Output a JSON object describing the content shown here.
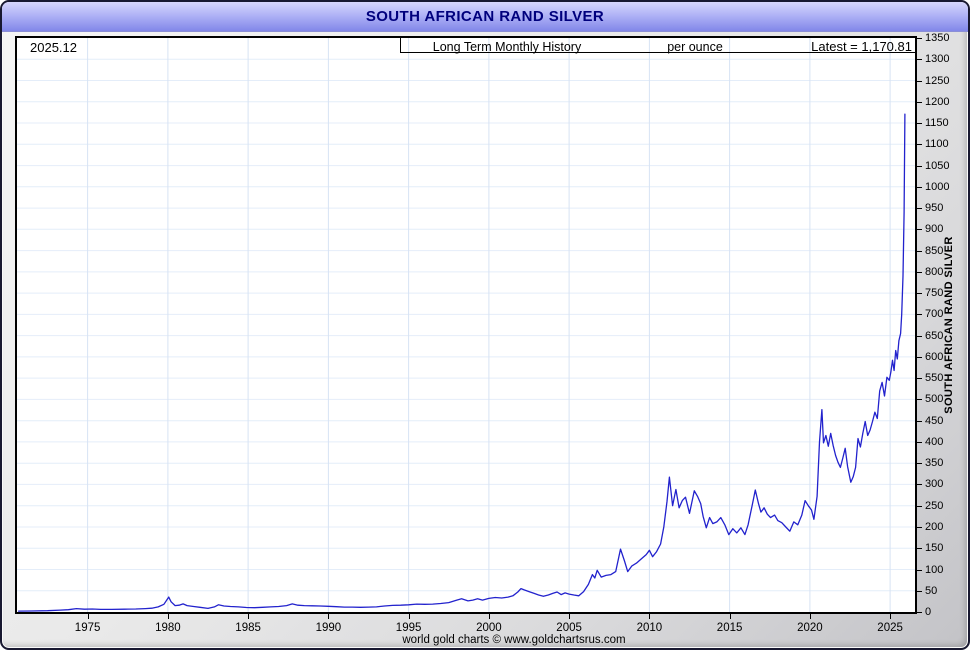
{
  "window": {
    "title": "SOUTH AFRICAN RAND SILVER",
    "footer": "world gold charts © www.goldchartsrus.com"
  },
  "header": {
    "date": "2025.12",
    "subtitle": "Long Term Monthly History",
    "unit": "per ounce",
    "latest_label": "Latest = 1,170.81"
  },
  "axes": {
    "y_right_label": "SOUTH AFRICAN RAND SILVER"
  },
  "colors": {
    "line": "#2222cd",
    "grid_h": "#e4edf9",
    "grid_v": "#d7e3f4",
    "title_text": "#00007d",
    "plot_border": "#000000"
  },
  "chart_data": {
    "type": "line",
    "title": "SOUTH AFRICAN RAND SILVER",
    "subtitle": "Long Term Monthly History",
    "unit": "per ounce",
    "latest_value": 1170.81,
    "latest_period": "2025.12",
    "xlim": [
      1970.6,
      2026.55
    ],
    "ylim": [
      0,
      1350
    ],
    "x_ticks": [
      1975,
      1980,
      1985,
      1990,
      1995,
      2000,
      2005,
      2010,
      2015,
      2020,
      2025
    ],
    "y_tick_step": 50,
    "grid": true,
    "series": [
      {
        "name": "South African Rand silver price per ounce (monthly)",
        "points": [
          [
            1970.7,
            2
          ],
          [
            1971.5,
            2.3
          ],
          [
            1972.5,
            3
          ],
          [
            1973.3,
            4.5
          ],
          [
            1973.8,
            5.5
          ],
          [
            1974.3,
            8
          ],
          [
            1974.8,
            6.5
          ],
          [
            1975.3,
            7
          ],
          [
            1975.8,
            6
          ],
          [
            1976.5,
            6
          ],
          [
            1977.3,
            6.5
          ],
          [
            1978.0,
            7
          ],
          [
            1978.6,
            8
          ],
          [
            1979.0,
            9
          ],
          [
            1979.4,
            12
          ],
          [
            1979.75,
            18
          ],
          [
            1980.05,
            35
          ],
          [
            1980.2,
            24
          ],
          [
            1980.45,
            15
          ],
          [
            1980.7,
            16
          ],
          [
            1980.95,
            19
          ],
          [
            1981.2,
            15
          ],
          [
            1981.6,
            13
          ],
          [
            1982.0,
            11
          ],
          [
            1982.5,
            8.5
          ],
          [
            1982.9,
            12
          ],
          [
            1983.15,
            17
          ],
          [
            1983.5,
            14
          ],
          [
            1983.9,
            13
          ],
          [
            1984.4,
            12
          ],
          [
            1984.9,
            10.5
          ],
          [
            1985.4,
            10
          ],
          [
            1985.9,
            11
          ],
          [
            1986.4,
            12
          ],
          [
            1986.9,
            13
          ],
          [
            1987.4,
            15
          ],
          [
            1987.75,
            19
          ],
          [
            1988.1,
            16
          ],
          [
            1988.5,
            15
          ],
          [
            1989.0,
            14.5
          ],
          [
            1989.5,
            14
          ],
          [
            1990.0,
            13.5
          ],
          [
            1990.5,
            12.5
          ],
          [
            1991.0,
            11.5
          ],
          [
            1991.5,
            11.5
          ],
          [
            1992.0,
            11
          ],
          [
            1992.5,
            11.5
          ],
          [
            1993.0,
            12
          ],
          [
            1993.5,
            14
          ],
          [
            1994.0,
            15.5
          ],
          [
            1994.5,
            16
          ],
          [
            1995.0,
            17
          ],
          [
            1995.5,
            18.5
          ],
          [
            1996.0,
            18
          ],
          [
            1996.5,
            18.5
          ],
          [
            1997.0,
            20
          ],
          [
            1997.5,
            22
          ],
          [
            1998.0,
            28
          ],
          [
            1998.3,
            31
          ],
          [
            1998.7,
            26
          ],
          [
            1999.0,
            28
          ],
          [
            1999.3,
            31
          ],
          [
            1999.6,
            28
          ],
          [
            2000.0,
            32
          ],
          [
            2000.4,
            34
          ],
          [
            2000.8,
            33
          ],
          [
            2001.2,
            35
          ],
          [
            2001.5,
            38
          ],
          [
            2001.8,
            47
          ],
          [
            2002.0,
            55
          ],
          [
            2002.2,
            52
          ],
          [
            2002.5,
            48
          ],
          [
            2002.8,
            44
          ],
          [
            2003.1,
            40
          ],
          [
            2003.4,
            37
          ],
          [
            2003.7,
            40
          ],
          [
            2004.0,
            44
          ],
          [
            2004.25,
            47
          ],
          [
            2004.5,
            41
          ],
          [
            2004.75,
            45
          ],
          [
            2005.0,
            42
          ],
          [
            2005.3,
            40
          ],
          [
            2005.6,
            38
          ],
          [
            2005.9,
            48
          ],
          [
            2006.2,
            65
          ],
          [
            2006.45,
            88
          ],
          [
            2006.6,
            80
          ],
          [
            2006.75,
            98
          ],
          [
            2007.0,
            82
          ],
          [
            2007.3,
            86
          ],
          [
            2007.6,
            88
          ],
          [
            2007.9,
            95
          ],
          [
            2008.2,
            148
          ],
          [
            2008.45,
            120
          ],
          [
            2008.65,
            95
          ],
          [
            2008.9,
            108
          ],
          [
            2009.2,
            115
          ],
          [
            2009.5,
            125
          ],
          [
            2009.8,
            135
          ],
          [
            2010.0,
            145
          ],
          [
            2010.2,
            130
          ],
          [
            2010.45,
            142
          ],
          [
            2010.7,
            160
          ],
          [
            2010.9,
            200
          ],
          [
            2011.1,
            260
          ],
          [
            2011.25,
            317
          ],
          [
            2011.45,
            250
          ],
          [
            2011.65,
            288
          ],
          [
            2011.85,
            245
          ],
          [
            2012.05,
            262
          ],
          [
            2012.25,
            270
          ],
          [
            2012.5,
            232
          ],
          [
            2012.8,
            285
          ],
          [
            2013.0,
            272
          ],
          [
            2013.2,
            255
          ],
          [
            2013.35,
            225
          ],
          [
            2013.55,
            198
          ],
          [
            2013.75,
            222
          ],
          [
            2013.95,
            208
          ],
          [
            2014.2,
            212
          ],
          [
            2014.45,
            222
          ],
          [
            2014.7,
            205
          ],
          [
            2014.95,
            182
          ],
          [
            2015.2,
            196
          ],
          [
            2015.45,
            186
          ],
          [
            2015.7,
            198
          ],
          [
            2015.95,
            182
          ],
          [
            2016.15,
            205
          ],
          [
            2016.4,
            250
          ],
          [
            2016.6,
            287
          ],
          [
            2016.8,
            255
          ],
          [
            2016.95,
            235
          ],
          [
            2017.15,
            245
          ],
          [
            2017.35,
            230
          ],
          [
            2017.55,
            222
          ],
          [
            2017.8,
            228
          ],
          [
            2018.0,
            215
          ],
          [
            2018.25,
            210
          ],
          [
            2018.5,
            200
          ],
          [
            2018.75,
            190
          ],
          [
            2019.0,
            212
          ],
          [
            2019.25,
            205
          ],
          [
            2019.5,
            228
          ],
          [
            2019.7,
            262
          ],
          [
            2019.9,
            250
          ],
          [
            2020.1,
            240
          ],
          [
            2020.25,
            218
          ],
          [
            2020.45,
            272
          ],
          [
            2020.6,
            400
          ],
          [
            2020.75,
            476
          ],
          [
            2020.85,
            398
          ],
          [
            2021.0,
            415
          ],
          [
            2021.15,
            390
          ],
          [
            2021.3,
            420
          ],
          [
            2021.45,
            392
          ],
          [
            2021.6,
            368
          ],
          [
            2021.75,
            352
          ],
          [
            2021.9,
            340
          ],
          [
            2022.05,
            362
          ],
          [
            2022.2,
            385
          ],
          [
            2022.35,
            342
          ],
          [
            2022.55,
            305
          ],
          [
            2022.7,
            318
          ],
          [
            2022.85,
            340
          ],
          [
            2023.0,
            408
          ],
          [
            2023.15,
            388
          ],
          [
            2023.3,
            420
          ],
          [
            2023.45,
            448
          ],
          [
            2023.6,
            415
          ],
          [
            2023.75,
            428
          ],
          [
            2023.9,
            448
          ],
          [
            2024.05,
            470
          ],
          [
            2024.2,
            455
          ],
          [
            2024.35,
            520
          ],
          [
            2024.5,
            540
          ],
          [
            2024.65,
            508
          ],
          [
            2024.8,
            552
          ],
          [
            2024.95,
            545
          ],
          [
            2025.05,
            565
          ],
          [
            2025.15,
            592
          ],
          [
            2025.25,
            568
          ],
          [
            2025.35,
            615
          ],
          [
            2025.45,
            595
          ],
          [
            2025.55,
            638
          ],
          [
            2025.65,
            655
          ],
          [
            2025.72,
            700
          ],
          [
            2025.8,
            790
          ],
          [
            2025.87,
            940
          ],
          [
            2025.92,
            1170.81
          ]
        ]
      }
    ]
  }
}
